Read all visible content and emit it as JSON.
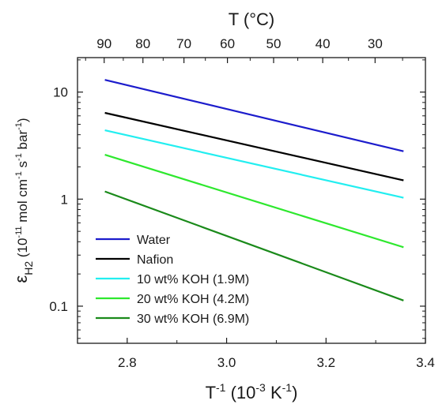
{
  "chart_data": {
    "type": "line",
    "xscale": "linear",
    "yscale": "log",
    "xlim": [
      2.7,
      3.4
    ],
    "ylim": [
      0.045,
      21
    ],
    "x_ticks": [
      2.8,
      3.0,
      3.2,
      3.4
    ],
    "x_tick_labels": [
      "2.8",
      "3.0",
      "3.2",
      "3.4"
    ],
    "y_ticks": [
      0.1,
      1,
      10
    ],
    "y_tick_labels": [
      "0.1",
      "1",
      "10"
    ],
    "xlabel": {
      "main": "T",
      "sup1": "-1",
      "paren_open": " (10",
      "sup2": "-3",
      "mid": " K",
      "sup3": "-1",
      "paren_close": ")"
    },
    "ylabel": {
      "symbol": "ε",
      "sub": "H2",
      "paren_open": " (10",
      "sup1": "-11",
      "p1": " mol cm",
      "sup2": "-1",
      "p2": " s",
      "sup3": "-1",
      "p3": " bar",
      "sup4": "-1",
      "paren_close": ")"
    },
    "top_axis": {
      "label": "T (°C)",
      "ticks_celsius": [
        90,
        80,
        70,
        60,
        50,
        40,
        30
      ]
    },
    "grid": false,
    "legend_position": "bottom-left",
    "series": [
      {
        "name": "Water",
        "color": "#1c1ccc",
        "x": [
          2.755,
          3.356
        ],
        "y": [
          13.0,
          2.8
        ]
      },
      {
        "name": "Nafion",
        "color": "#000000",
        "x": [
          2.755,
          3.356
        ],
        "y": [
          6.4,
          1.5
        ]
      },
      {
        "name": "10 wt% KOH (1.9M)",
        "color": "#22eef0",
        "x": [
          2.755,
          3.356
        ],
        "y": [
          4.4,
          1.03
        ]
      },
      {
        "name": "20 wt% KOH (4.2M)",
        "color": "#2ee82e",
        "x": [
          2.755,
          3.356
        ],
        "y": [
          2.6,
          0.355
        ]
      },
      {
        "name": "30 wt% KOH (6.9M)",
        "color": "#1a8a1a",
        "x": [
          2.755,
          3.356
        ],
        "y": [
          1.18,
          0.113
        ]
      }
    ]
  }
}
